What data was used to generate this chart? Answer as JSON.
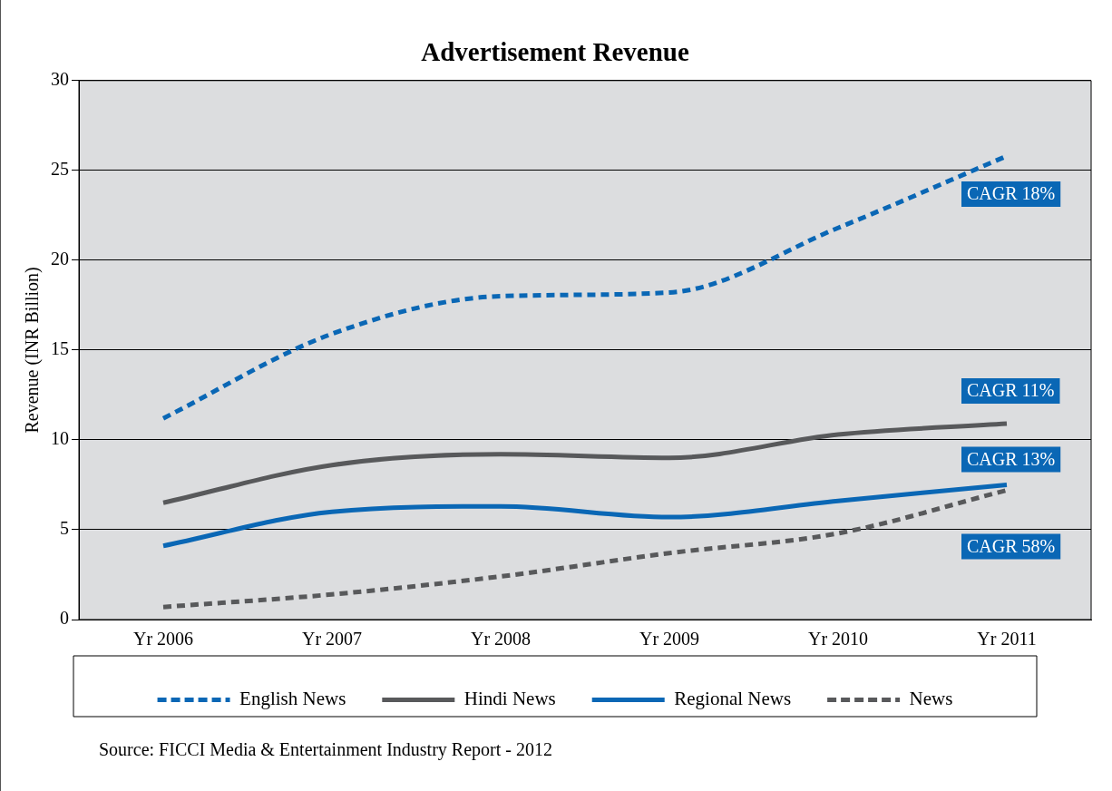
{
  "chart_data": {
    "type": "line",
    "title": "Advertisement Revenue",
    "ylabel": "Revenue (INR Billion)",
    "categories": [
      "Yr 2006",
      "Yr 2007",
      "Yr 2008",
      "Yr 2009",
      "Yr 2010",
      "Yr 2011"
    ],
    "series": [
      {
        "name": "English News",
        "color": "#0a67b5",
        "line_style": "dashed",
        "values": [
          11.2,
          15.9,
          18.0,
          18.2,
          21.8,
          25.8
        ]
      },
      {
        "name": "Hindi News",
        "color": "#58595b",
        "line_style": "solid",
        "values": [
          6.5,
          8.6,
          9.2,
          9.0,
          10.3,
          10.9
        ]
      },
      {
        "name": "Regional News",
        "color": "#0a67b5",
        "line_style": "solid",
        "values": [
          4.1,
          6.0,
          6.3,
          5.7,
          6.6,
          7.5
        ]
      },
      {
        "name": "News",
        "color": "#58595b",
        "line_style": "dashed",
        "values": [
          0.7,
          1.4,
          2.4,
          3.7,
          4.8,
          7.2
        ]
      }
    ],
    "ylim": [
      0,
      30
    ],
    "yticks": [
      0,
      5,
      10,
      15,
      20,
      25,
      30
    ],
    "grid": "y",
    "legend": "bottom",
    "marker": "none",
    "annotations": [
      "CAGR 18%",
      "CAGR 11%",
      "CAGR 13%",
      "CAGR 58%",
      "Source: FICCI Media & Entertainment Industry Report - 2012"
    ]
  }
}
